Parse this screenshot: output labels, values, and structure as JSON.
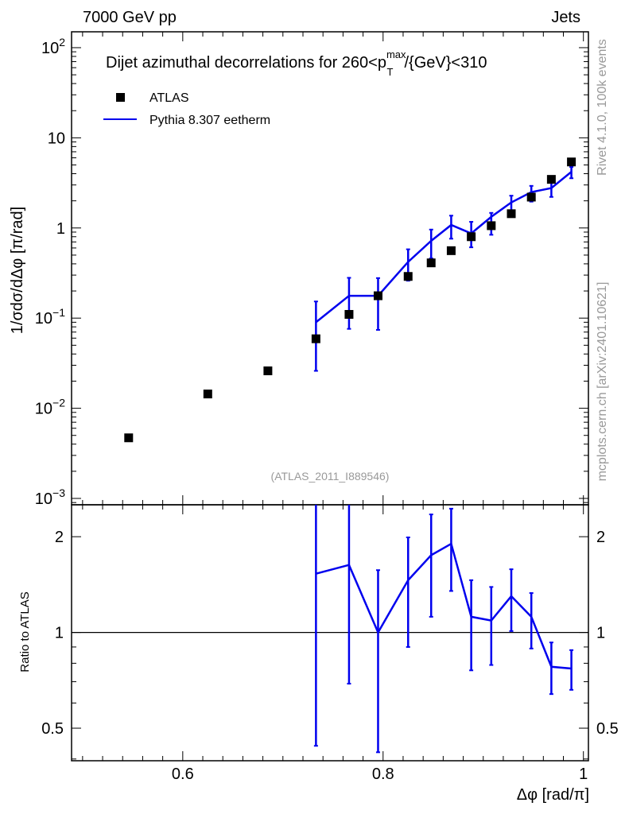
{
  "header": {
    "left": "7000 GeV pp",
    "right": "Jets"
  },
  "side_labels": {
    "rivet": "Rivet 4.1.0,  100k events",
    "mcplots": "mcplots.cern.ch [arXiv:2401.10621]"
  },
  "colors": {
    "data": "#000000",
    "mc": "#0000ee",
    "watermark": "#999999"
  },
  "chart_data": [
    {
      "type": "scatter",
      "title_main": "Dijet azimuthal decorrelations for 260<p",
      "title_sup": "max",
      "title_sub": "T",
      "title_tail": "/{GeV}<310",
      "ylabel": "1/σdσ/dΔφ [π/rad]",
      "yscale": "log",
      "ylim": [
        0.00085,
        150
      ],
      "xlim": [
        0.489,
        1.005
      ],
      "yticks": [
        {
          "v": 100,
          "label": "10",
          "exp": "2"
        },
        {
          "v": 10,
          "label": "10",
          "exp": ""
        },
        {
          "v": 1,
          "label": "1",
          "exp": ""
        },
        {
          "v": 0.1,
          "label": "10",
          "exp": "−1"
        },
        {
          "v": 0.01,
          "label": "10",
          "exp": "−2"
        },
        {
          "v": 0.001,
          "label": "10",
          "exp": "−3"
        }
      ],
      "watermark": "(ATLAS_2011_I889546)",
      "legend": {
        "position": "top-left",
        "entries": [
          "ATLAS",
          "Pythia 8.307 eetherm"
        ]
      },
      "series": [
        {
          "name": "ATLAS",
          "kind": "markers",
          "x": [
            0.546,
            0.625,
            0.685,
            0.733,
            0.766,
            0.795,
            0.825,
            0.848,
            0.868,
            0.888,
            0.908,
            0.928,
            0.948,
            0.968,
            0.988
          ],
          "y": [
            0.0047,
            0.0144,
            0.026,
            0.059,
            0.11,
            0.177,
            0.29,
            0.41,
            0.56,
            0.8,
            1.06,
            1.44,
            2.2,
            3.46,
            5.4
          ]
        },
        {
          "name": "Pythia 8.307 eetherm",
          "kind": "line",
          "x": [
            0.733,
            0.766,
            0.795,
            0.825,
            0.848,
            0.868,
            0.888,
            0.908,
            0.928,
            0.948,
            0.968,
            0.988
          ],
          "y": [
            0.09,
            0.177,
            0.177,
            0.42,
            0.72,
            1.08,
            0.87,
            1.33,
            1.92,
            2.5,
            2.77,
            4.2
          ],
          "err_lo": [
            0.026,
            0.076,
            0.074,
            0.26,
            0.46,
            0.76,
            0.61,
            0.84,
            1.45,
            1.96,
            2.21,
            3.56
          ],
          "err_hi": [
            0.153,
            0.28,
            0.278,
            0.58,
            0.96,
            1.37,
            1.17,
            1.47,
            2.28,
            2.93,
            3.22,
            4.75
          ]
        }
      ]
    },
    {
      "type": "line",
      "ylabel": "Ratio to ATLAS",
      "xlabel": "Δφ [rad/π]",
      "yscale": "log",
      "ylim": [
        0.395,
        2.52
      ],
      "xlim": [
        0.489,
        1.005
      ],
      "yticks": [
        {
          "v": 2,
          "label": "2"
        },
        {
          "v": 1,
          "label": "1"
        },
        {
          "v": 0.5,
          "label": "0.5"
        }
      ],
      "xticks": [
        {
          "v": 0.6,
          "label": "0.6"
        },
        {
          "v": 0.8,
          "label": "0.8"
        },
        {
          "v": 1.0,
          "label": "1"
        }
      ],
      "series": [
        {
          "name": "Pythia 8.307 eetherm / ATLAS",
          "x": [
            0.733,
            0.766,
            0.795,
            0.825,
            0.848,
            0.868,
            0.888,
            0.908,
            0.928,
            0.948,
            0.968,
            0.988
          ],
          "y": [
            1.53,
            1.63,
            1.0,
            1.46,
            1.75,
            1.9,
            1.12,
            1.09,
            1.3,
            1.12,
            0.78,
            0.77
          ],
          "err_lo": [
            0.44,
            0.69,
            0.42,
            0.9,
            1.12,
            1.35,
            0.76,
            0.79,
            1.01,
            0.89,
            0.64,
            0.66
          ],
          "err_hi": [
            2.6,
            2.6,
            1.57,
            1.99,
            2.35,
            2.45,
            1.46,
            1.39,
            1.58,
            1.33,
            0.93,
            0.88
          ]
        }
      ]
    }
  ]
}
